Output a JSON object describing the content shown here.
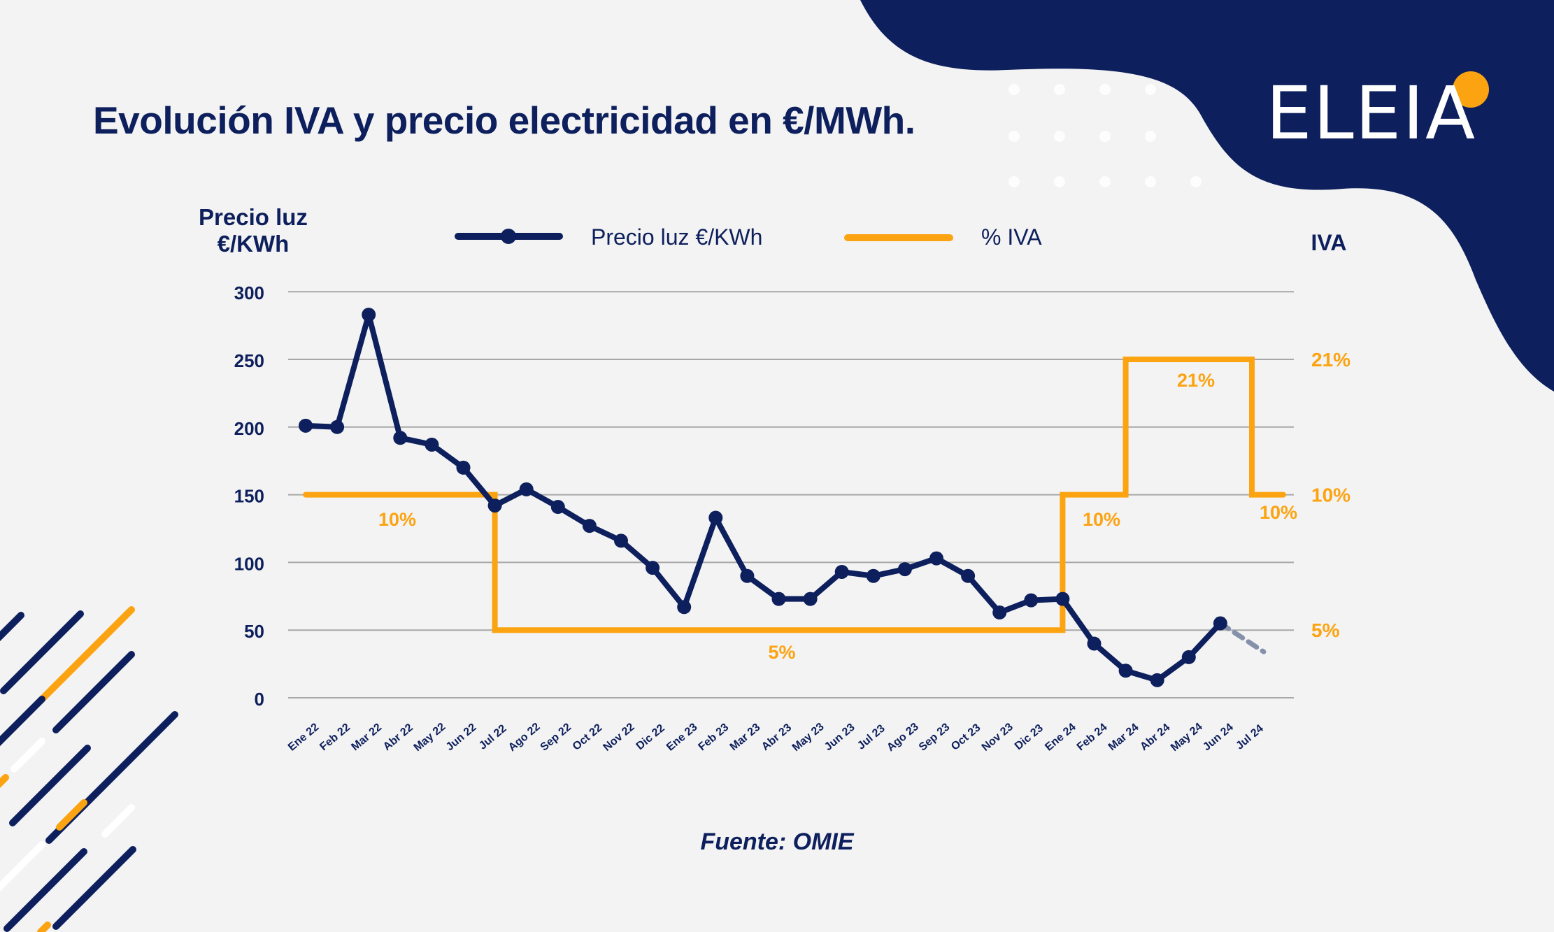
{
  "header": {
    "title": "Evolución IVA y precio electricidad en €/MWh.",
    "logo_text": "ELEIA"
  },
  "footer": {
    "source": "Fuente: OMIE"
  },
  "colors": {
    "navy": "#0d1f5c",
    "orange": "#fca311",
    "dashed_projection": "#8590ab",
    "grid": "#a8a8a8",
    "background": "#f3f3f3"
  },
  "chart_data": {
    "type": "line",
    "title": "Evolución IVA y precio electricidad en €/MWh.",
    "ylabel_left_line1": "Precio luz",
    "ylabel_left_line2": "€/KWh",
    "ylabel_right": "IVA",
    "ylim": [
      0,
      300
    ],
    "yticks": [
      0,
      50,
      100,
      150,
      200,
      250,
      300
    ],
    "right_ticks": [
      {
        "label": "21%",
        "value": 21
      },
      {
        "label": "10%",
        "value": 10
      },
      {
        "label": "5%",
        "value": 5
      }
    ],
    "legend_position": "top",
    "grid": true,
    "categories": [
      "Ene 22",
      "Feb 22",
      "Mar 22",
      "Abr 22",
      "May 22",
      "Jun 22",
      "Jul 22",
      "Ago 22",
      "Sep 22",
      "Oct 22",
      "Nov 22",
      "Dic 22",
      "Ene 23",
      "Feb 23",
      "Mar 23",
      "Abr 23",
      "May 23",
      "Jun 23",
      "Jul 23",
      "Ago 23",
      "Sep 23",
      "Oct 23",
      "Nov 23",
      "Dic 23",
      "Ene 24",
      "Feb 24",
      "Mar 24",
      "Abr 24",
      "May 24",
      "Jun 24",
      "Jul 24"
    ],
    "series": [
      {
        "name": "Precio luz €/KWh",
        "values": [
          201,
          200,
          283,
          192,
          187,
          170,
          142,
          154,
          141,
          127,
          116,
          96,
          67,
          133,
          90,
          73,
          73,
          93,
          90,
          95,
          103,
          90,
          63,
          72,
          73,
          40,
          20,
          13,
          30,
          55,
          null
        ],
        "projection_value": 34
      },
      {
        "name": "% IVA",
        "steps": [
          {
            "from": "Ene 22",
            "to": "Jul 22",
            "value": 10,
            "label": "10%"
          },
          {
            "from": "Jul 22",
            "to": "Ene 24",
            "value": 5,
            "label": "5%"
          },
          {
            "from": "Ene 24",
            "to": "Mar 24",
            "value": 10,
            "label": "10%"
          },
          {
            "from": "Mar 24",
            "to": "Jul 24",
            "value": 21,
            "label": "21%"
          },
          {
            "from": "Jul 24",
            "to": "Jul 24",
            "value": 10,
            "label": "10%"
          }
        ]
      }
    ]
  }
}
